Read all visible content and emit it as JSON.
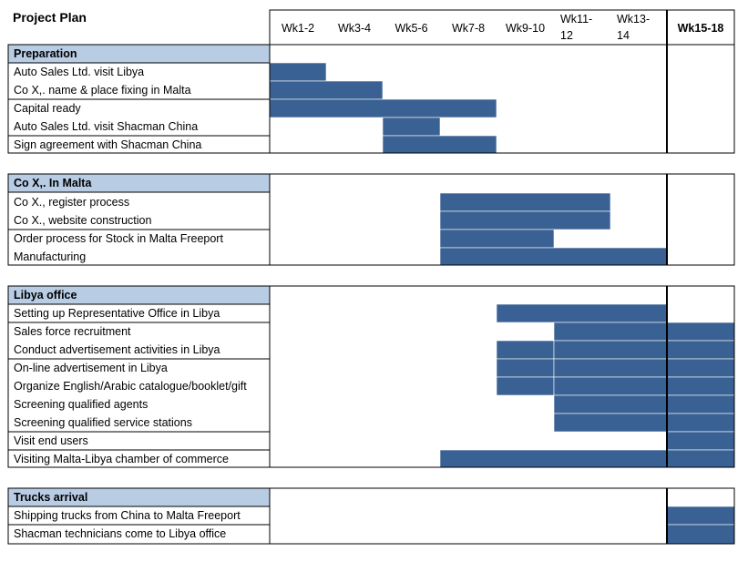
{
  "chart_data": {
    "type": "gantt",
    "title": "Project Plan",
    "columns": [
      "Wk1-2",
      "Wk3-4",
      "Wk5-6",
      "Wk7-8",
      "Wk9-10",
      "Wk11-12",
      "Wk13-14",
      "Wk15-18"
    ],
    "colors": {
      "bar": "#3A6193",
      "section_header": "#B8CCE4",
      "grid": "#000000"
    },
    "sections": [
      {
        "name": "Preparation",
        "tasks": [
          {
            "name": "Auto Sales Ltd.  visit Libya",
            "segments": [
              [
                0,
                1
              ]
            ]
          },
          {
            "name": "Co X,. name & place fixing in Malta",
            "segments": [
              [
                0,
                2
              ]
            ]
          },
          {
            "name": "Capital ready",
            "segments": [
              [
                0,
                4
              ]
            ]
          },
          {
            "name": "Auto Sales Ltd.  visit Shacman China",
            "segments": [
              [
                2,
                3
              ]
            ]
          },
          {
            "name": "Sign agreement with Shacman China",
            "segments": [
              [
                2,
                4
              ]
            ]
          }
        ]
      },
      {
        "name": "Co X,. In Malta",
        "tasks": [
          {
            "name": "Co X., register process",
            "segments": [
              [
                3,
                6
              ]
            ]
          },
          {
            "name": "Co X., website construction",
            "segments": [
              [
                3,
                6
              ]
            ]
          },
          {
            "name": "Order process for Stock in Malta Freeport",
            "segments": [
              [
                3,
                5
              ]
            ]
          },
          {
            "name": "Manufacturing",
            "segments": [
              [
                3,
                7
              ]
            ]
          }
        ]
      },
      {
        "name": "Libya office",
        "tasks": [
          {
            "name": "Setting up Representative Office in Libya",
            "segments": [
              [
                4,
                7
              ]
            ]
          },
          {
            "name": "Sales force recruitment",
            "segments": [
              [
                5,
                7
              ],
              [
                7,
                8
              ]
            ]
          },
          {
            "name": "Conduct advertisement activities in Libya",
            "segments": [
              [
                4,
                5
              ],
              [
                5,
                7
              ],
              [
                7,
                8
              ]
            ]
          },
          {
            "name": "On-line advertisement in Libya",
            "segments": [
              [
                4,
                5
              ],
              [
                5,
                7
              ],
              [
                7,
                8
              ]
            ]
          },
          {
            "name": "Organize English/Arabic catalogue/booklet/gift",
            "segments": [
              [
                4,
                5
              ],
              [
                5,
                7
              ],
              [
                7,
                8
              ]
            ]
          },
          {
            "name": "Screening qualified agents",
            "segments": [
              [
                5,
                7
              ],
              [
                7,
                8
              ]
            ]
          },
          {
            "name": "Screening qualified service stations",
            "segments": [
              [
                5,
                7
              ],
              [
                7,
                8
              ]
            ]
          },
          {
            "name": "Visit end users",
            "segments": [
              [
                7,
                8
              ]
            ]
          },
          {
            "name": "Visiting Malta-Libya chamber of commerce",
            "segments": [
              [
                3,
                7
              ],
              [
                7,
                8
              ]
            ]
          }
        ]
      },
      {
        "name": "Trucks arrival",
        "tasks": [
          {
            "name": "Shipping trucks from China to Malta Freeport",
            "segments": [
              [
                7,
                8
              ]
            ]
          },
          {
            "name": "Shacman technicians come to Libya office",
            "segments": [
              [
                7,
                8
              ]
            ]
          }
        ]
      }
    ]
  }
}
